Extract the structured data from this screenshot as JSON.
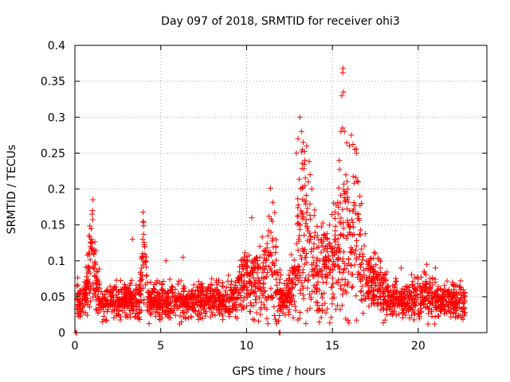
{
  "chart_data": {
    "type": "scatter",
    "title": "Day 097 of 2018, SRMTID for receiver ohi3",
    "xlabel": "GPS time / hours",
    "ylabel": "SRMTID / TECUs",
    "xlim": [
      0,
      24
    ],
    "ylim": [
      0,
      0.4
    ],
    "xticks": [
      0,
      5,
      10,
      15,
      20
    ],
    "xtick_labels": [
      "0",
      "5",
      "10",
      "15",
      "20"
    ],
    "yticks": [
      0,
      0.05,
      0.1,
      0.15,
      0.2,
      0.25,
      0.3,
      0.35,
      0.4
    ],
    "ytick_labels": [
      "0",
      "0.05",
      "0.1",
      "0.15",
      "0.2",
      "0.25",
      "0.3",
      "0.35",
      "0.4"
    ],
    "grid": true,
    "marker": "plus",
    "color": "#ff0000",
    "time_range_hours": [
      0,
      22.75
    ],
    "baseline_level": 0.045,
    "series": [
      {
        "name": "SRMTID",
        "points": [
          [
            0.05,
            0.0
          ],
          [
            0.1,
            0.0
          ],
          [
            11.9,
            0.0
          ],
          [
            11.95,
            0.0
          ],
          [
            0.9,
            0.12
          ],
          [
            0.95,
            0.13
          ],
          [
            1.0,
            0.165
          ],
          [
            1.02,
            0.17
          ],
          [
            1.05,
            0.185
          ],
          [
            1.1,
            0.11
          ],
          [
            1.2,
            0.095
          ],
          [
            3.35,
            0.13
          ],
          [
            3.95,
            0.13
          ],
          [
            4.0,
            0.137
          ],
          [
            4.05,
            0.12
          ],
          [
            4.1,
            0.1
          ],
          [
            5.3,
            0.1
          ],
          [
            6.3,
            0.105
          ],
          [
            6.1,
            0.012
          ],
          [
            6.2,
            0.015
          ],
          [
            10.3,
            0.16
          ],
          [
            11.3,
            0.162
          ],
          [
            11.5,
            0.155
          ],
          [
            11.7,
            0.12
          ],
          [
            12.9,
            0.25
          ],
          [
            13.0,
            0.27
          ],
          [
            13.1,
            0.3
          ],
          [
            13.2,
            0.28
          ],
          [
            13.3,
            0.265
          ],
          [
            13.4,
            0.24
          ],
          [
            13.5,
            0.26
          ],
          [
            13.6,
            0.21
          ],
          [
            13.7,
            0.22
          ],
          [
            13.8,
            0.2
          ],
          [
            15.4,
            0.24
          ],
          [
            15.5,
            0.28
          ],
          [
            15.55,
            0.33
          ],
          [
            15.6,
            0.362
          ],
          [
            15.62,
            0.368
          ],
          [
            15.65,
            0.335
          ],
          [
            15.7,
            0.28
          ],
          [
            15.9,
            0.2
          ],
          [
            16.0,
            0.26
          ],
          [
            16.1,
            0.275
          ],
          [
            16.2,
            0.262
          ],
          [
            16.3,
            0.255
          ],
          [
            16.4,
            0.25
          ],
          [
            16.5,
            0.21
          ],
          [
            16.6,
            0.19
          ],
          [
            16.7,
            0.18
          ],
          [
            17.5,
            0.11
          ],
          [
            18.0,
            0.08
          ],
          [
            19.0,
            0.09
          ],
          [
            20.0,
            0.075
          ],
          [
            20.5,
            0.095
          ],
          [
            21.0,
            0.09
          ],
          [
            22.0,
            0.07
          ],
          [
            22.7,
            0.055
          ]
        ]
      }
    ]
  }
}
